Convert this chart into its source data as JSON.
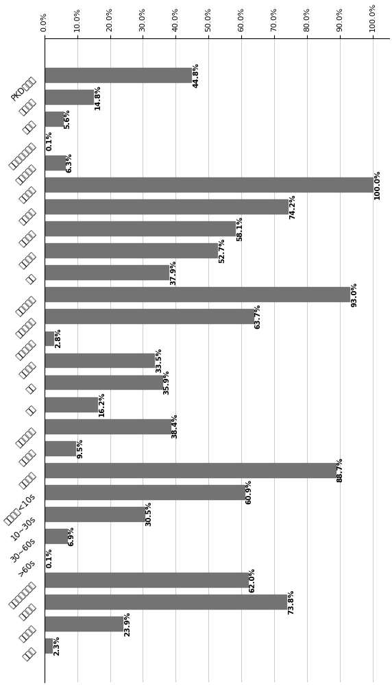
{
  "labels": [
    "PKD家族史",
    "婴儿惊厥",
    "偏头痛",
    "发作性共济失调",
    "原发性震颤",
    "突然运动",
    "速度改变",
    "运动意图",
    "情绪紧张",
    "疲劳",
    "发作前预感",
    "肌张力障碍",
    "舞蹈样动作",
    "组合发作",
    "单侧",
    "双侧",
    "单侧或双侧",
    "单侧交替",
    "面部受累",
    "持续时间<10s",
    "10~30s",
    "30~60s",
    ">60s",
    "接受药物治疗者",
    "完全有效",
    "部分有效",
    "无疗效"
  ],
  "values": [
    44.8,
    14.8,
    5.6,
    0.1,
    6.3,
    100.0,
    74.2,
    58.1,
    52.7,
    37.9,
    93.0,
    63.7,
    2.8,
    33.5,
    35.9,
    16.2,
    38.4,
    9.5,
    88.7,
    60.9,
    30.5,
    6.9,
    0.1,
    62.0,
    73.8,
    23.9,
    2.3
  ],
  "value_labels": [
    "44.8%",
    "14.8%",
    "5.6%",
    "0.1%",
    "6.3%",
    "100.0%",
    "74.2%",
    "58.1%",
    "52.7%",
    "37.9%",
    "93.0%",
    "63.7%",
    "2.8%",
    "33.5%",
    "35.9%",
    "16.2%",
    "38.4%",
    "9.5%",
    "88.7%",
    "60.9%",
    "30.5%",
    "6.9%",
    "0.1%",
    "62.0%",
    "73.8%",
    "23.9%",
    "2.3%"
  ],
  "bar_color": "#737373",
  "xlim": [
    0,
    105
  ],
  "xticks": [
    0,
    10,
    20,
    30,
    40,
    50,
    60,
    70,
    80,
    90,
    100
  ],
  "xtick_labels": [
    "0.0%",
    "10.0%",
    "20.0%",
    "30.0%",
    "40.0%",
    "50.0%",
    "60.0%",
    "70.0%",
    "80.0%",
    "90.0%",
    "100.0%"
  ],
  "background_color": "#ffffff",
  "bar_height": 0.65,
  "fontsize_xticks": 8,
  "fontsize_labels": 8.5,
  "fontsize_values": 7.5,
  "label_rotation": 45,
  "value_rotation": 90
}
